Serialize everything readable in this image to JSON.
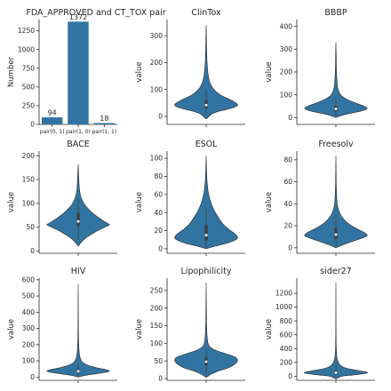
{
  "chart_data": [
    {
      "id": "pairs",
      "type": "bar",
      "title": "FDA_APPROVED and CT_TOX pair",
      "xlabel": "",
      "ylabel": "Number",
      "categories": [
        "pair(0, 1)",
        "pair(1, 0)",
        "pair(1, 1)"
      ],
      "values": [
        94,
        1372,
        18
      ],
      "ylim": [
        0,
        1400
      ],
      "yticks": [
        0,
        250,
        500,
        750,
        1000,
        1250
      ],
      "color": "#3274a1"
    },
    {
      "id": "clintox",
      "type": "violin",
      "title": "ClinTox",
      "ylabel": "value",
      "ylim": [
        -30,
        360
      ],
      "yticks": [
        0,
        100,
        200,
        300
      ],
      "profile": [
        [
          -10,
          0.0
        ],
        [
          10,
          0.2
        ],
        [
          20,
          0.45
        ],
        [
          30,
          0.8
        ],
        [
          40,
          1.0
        ],
        [
          50,
          0.95
        ],
        [
          60,
          0.8
        ],
        [
          80,
          0.45
        ],
        [
          100,
          0.25
        ],
        [
          120,
          0.14
        ],
        [
          150,
          0.07
        ],
        [
          200,
          0.03
        ],
        [
          250,
          0.015
        ],
        [
          300,
          0.007
        ],
        [
          340,
          0.0
        ]
      ],
      "box": {
        "q1": 30,
        "median": 42,
        "q3": 60,
        "whisker_low": 5,
        "whisker_high": 100
      },
      "color": "#3274a1"
    },
    {
      "id": "bbbp",
      "type": "violin",
      "title": "BBBP",
      "ylabel": "value",
      "ylim": [
        -30,
        430
      ],
      "yticks": [
        0,
        100,
        200,
        300,
        400
      ],
      "profile": [
        [
          0,
          0.0
        ],
        [
          10,
          0.2
        ],
        [
          20,
          0.5
        ],
        [
          30,
          0.85
        ],
        [
          40,
          1.0
        ],
        [
          50,
          0.9
        ],
        [
          60,
          0.7
        ],
        [
          80,
          0.35
        ],
        [
          100,
          0.15
        ],
        [
          130,
          0.06
        ],
        [
          170,
          0.03
        ],
        [
          220,
          0.015
        ],
        [
          280,
          0.008
        ],
        [
          330,
          0.0
        ]
      ],
      "box": {
        "q1": 28,
        "median": 38,
        "q3": 52,
        "whisker_low": 8,
        "whisker_high": 85
      },
      "color": "#3274a1"
    },
    {
      "id": "bace",
      "type": "violin",
      "title": "BACE",
      "ylabel": "value",
      "ylim": [
        -5,
        210
      ],
      "yticks": [
        0,
        50,
        100,
        150,
        200
      ],
      "profile": [
        [
          10,
          0.0
        ],
        [
          20,
          0.12
        ],
        [
          30,
          0.3
        ],
        [
          40,
          0.55
        ],
        [
          50,
          0.85
        ],
        [
          55,
          1.0
        ],
        [
          60,
          0.88
        ],
        [
          70,
          0.65
        ],
        [
          80,
          0.45
        ],
        [
          90,
          0.3
        ],
        [
          100,
          0.18
        ],
        [
          115,
          0.08
        ],
        [
          130,
          0.04
        ],
        [
          150,
          0.02
        ],
        [
          170,
          0.008
        ],
        [
          182,
          0.0
        ]
      ],
      "box": {
        "q1": 52,
        "median": 62,
        "q3": 80,
        "whisker_low": 22,
        "whisker_high": 110
      },
      "color": "#3274a1"
    },
    {
      "id": "esol",
      "type": "violin",
      "title": "ESOL",
      "ylabel": "value",
      "ylim": [
        -5,
        108
      ],
      "yticks": [
        0,
        20,
        40,
        60,
        80,
        100
      ],
      "profile": [
        [
          0,
          0.0
        ],
        [
          3,
          0.3
        ],
        [
          6,
          0.65
        ],
        [
          10,
          0.95
        ],
        [
          13,
          1.0
        ],
        [
          17,
          0.9
        ],
        [
          22,
          0.7
        ],
        [
          28,
          0.52
        ],
        [
          35,
          0.38
        ],
        [
          42,
          0.26
        ],
        [
          50,
          0.16
        ],
        [
          60,
          0.08
        ],
        [
          70,
          0.04
        ],
        [
          80,
          0.02
        ],
        [
          92,
          0.008
        ],
        [
          103,
          0.0
        ]
      ],
      "box": {
        "q1": 9,
        "median": 15,
        "q3": 26,
        "whisker_low": 1,
        "whisker_high": 45
      },
      "color": "#3274a1"
    },
    {
      "id": "freesolv",
      "type": "violin",
      "title": "Freesolv",
      "ylabel": "value",
      "ylim": [
        -5,
        88
      ],
      "yticks": [
        0,
        20,
        40,
        60,
        80
      ],
      "profile": [
        [
          0,
          0.0
        ],
        [
          3,
          0.25
        ],
        [
          6,
          0.55
        ],
        [
          9,
          0.85
        ],
        [
          11,
          1.0
        ],
        [
          14,
          0.9
        ],
        [
          18,
          0.62
        ],
        [
          22,
          0.4
        ],
        [
          26,
          0.25
        ],
        [
          30,
          0.15
        ],
        [
          35,
          0.08
        ],
        [
          40,
          0.04
        ],
        [
          50,
          0.02
        ],
        [
          60,
          0.01
        ],
        [
          72,
          0.005
        ],
        [
          84,
          0.0
        ]
      ],
      "box": {
        "q1": 8,
        "median": 12,
        "q3": 18,
        "whisker_low": 2,
        "whisker_high": 30
      },
      "color": "#3274a1"
    },
    {
      "id": "hiv",
      "type": "violin",
      "title": "HIV",
      "ylabel": "value",
      "ylim": [
        -20,
        610
      ],
      "yticks": [
        0,
        100,
        200,
        300,
        400,
        500,
        600
      ],
      "profile": [
        [
          0,
          0.0
        ],
        [
          10,
          0.2
        ],
        [
          20,
          0.55
        ],
        [
          30,
          0.9
        ],
        [
          38,
          1.0
        ],
        [
          45,
          0.9
        ],
        [
          55,
          0.65
        ],
        [
          70,
          0.35
        ],
        [
          90,
          0.15
        ],
        [
          120,
          0.06
        ],
        [
          170,
          0.025
        ],
        [
          250,
          0.01
        ],
        [
          350,
          0.005
        ],
        [
          450,
          0.003
        ],
        [
          575,
          0.0
        ]
      ],
      "box": {
        "q1": 28,
        "median": 36,
        "q3": 48,
        "whisker_low": 5,
        "whisker_high": 80
      },
      "color": "#3274a1"
    },
    {
      "id": "lipophilicity",
      "type": "violin",
      "title": "Lipophilicity",
      "ylabel": "value",
      "ylim": [
        -5,
        285
      ],
      "yticks": [
        0,
        50,
        100,
        150,
        200,
        250
      ],
      "profile": [
        [
          3,
          0.0
        ],
        [
          12,
          0.15
        ],
        [
          22,
          0.4
        ],
        [
          30,
          0.7
        ],
        [
          40,
          0.9
        ],
        [
          50,
          1.0
        ],
        [
          60,
          0.95
        ],
        [
          70,
          0.65
        ],
        [
          80,
          0.3
        ],
        [
          90,
          0.12
        ],
        [
          100,
          0.06
        ],
        [
          120,
          0.03
        ],
        [
          150,
          0.015
        ],
        [
          200,
          0.007
        ],
        [
          272,
          0.0
        ]
      ],
      "box": {
        "q1": 38,
        "median": 48,
        "q3": 60,
        "whisker_low": 12,
        "whisker_high": 85
      },
      "color": "#3274a1"
    },
    {
      "id": "sider27",
      "type": "violin",
      "title": "sider27",
      "ylabel": "value",
      "ylim": [
        -60,
        1420
      ],
      "yticks": [
        0,
        200,
        400,
        600,
        800,
        1000,
        1200
      ],
      "profile": [
        [
          -40,
          0.0
        ],
        [
          0,
          0.2
        ],
        [
          20,
          0.6
        ],
        [
          40,
          0.95
        ],
        [
          55,
          1.0
        ],
        [
          70,
          0.85
        ],
        [
          90,
          0.6
        ],
        [
          120,
          0.3
        ],
        [
          160,
          0.14
        ],
        [
          220,
          0.06
        ],
        [
          300,
          0.025
        ],
        [
          450,
          0.01
        ],
        [
          650,
          0.005
        ],
        [
          900,
          0.003
        ],
        [
          1150,
          0.002
        ],
        [
          1360,
          0.0
        ]
      ],
      "box": {
        "q1": 30,
        "median": 50,
        "q3": 80,
        "whisker_low": 0,
        "whisker_high": 160
      },
      "color": "#3274a1"
    }
  ]
}
